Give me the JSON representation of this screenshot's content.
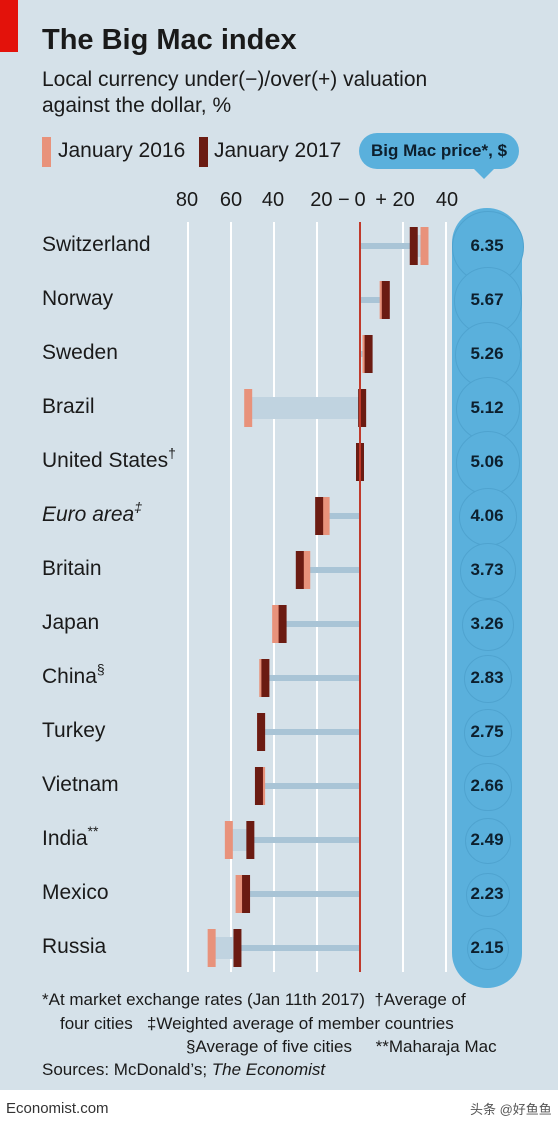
{
  "title": "The Big Mac index",
  "subtitle_line1": "Local currency under(−)/over(+) valuation",
  "subtitle_line2": "against the dollar, %",
  "legend": {
    "jan2016": "January 2016",
    "jan2017": "January 2017",
    "price_header": "Big Mac price*, $"
  },
  "colors": {
    "jan2016": "#e8927b",
    "jan2017": "#6b1b12",
    "zero_line": "#c0392b",
    "price_bubble": "#5ab0dc",
    "background": "#d5e1e9"
  },
  "notes": {
    "line1": "*At market exchange rates (Jan 11th 2017)",
    "line1b": "†Average of",
    "line2a": "four cities",
    "line2b": "‡Weighted average of member countries",
    "line3a": "§Average of five cities",
    "line3b": "**Maharaja Mac",
    "sources_prefix": "Sources: McDonald’s; ",
    "sources_italic": "The Economist"
  },
  "footer": {
    "logo": "Economist.com",
    "watermark": "头条 @好鱼鱼"
  },
  "chart_data": {
    "type": "dot",
    "title": "The Big Mac index",
    "x_ticks": [
      "80",
      "60",
      "40",
      "20 −",
      "0",
      "+ 20",
      "40"
    ],
    "xlim": [
      -80,
      40
    ],
    "series": [
      {
        "name": "January 2016",
        "values": [
          30,
          11,
          3,
          -52,
          0,
          -16,
          -25,
          -39,
          -45,
          -46,
          -46,
          -61,
          -56,
          -69
        ]
      },
      {
        "name": "January 2017",
        "values": [
          25,
          12,
          4,
          1,
          0,
          -19,
          -28,
          -36,
          -44,
          -46,
          -47,
          -51,
          -53,
          -57
        ]
      }
    ],
    "categories": [
      "Switzerland",
      "Norway",
      "Sweden",
      "Brazil",
      "United States",
      "Euro area",
      "Britain",
      "Japan",
      "China",
      "Turkey",
      "Vietnam",
      "India",
      "Mexico",
      "Russia"
    ],
    "category_marks": [
      "",
      "",
      "",
      "",
      "†",
      "‡",
      "",
      "",
      "§",
      "",
      "",
      "**",
      "",
      ""
    ],
    "category_italic": [
      false,
      false,
      false,
      false,
      false,
      true,
      false,
      false,
      false,
      false,
      false,
      false,
      false,
      false
    ],
    "prices": [
      "6.35",
      "5.67",
      "5.26",
      "5.12",
      "5.06",
      "4.06",
      "3.73",
      "3.26",
      "2.83",
      "2.75",
      "2.66",
      "2.49",
      "2.23",
      "2.15"
    ],
    "price_values": [
      6.35,
      5.67,
      5.26,
      5.12,
      5.06,
      4.06,
      3.73,
      3.26,
      2.83,
      2.75,
      2.66,
      2.49,
      2.23,
      2.15
    ]
  }
}
